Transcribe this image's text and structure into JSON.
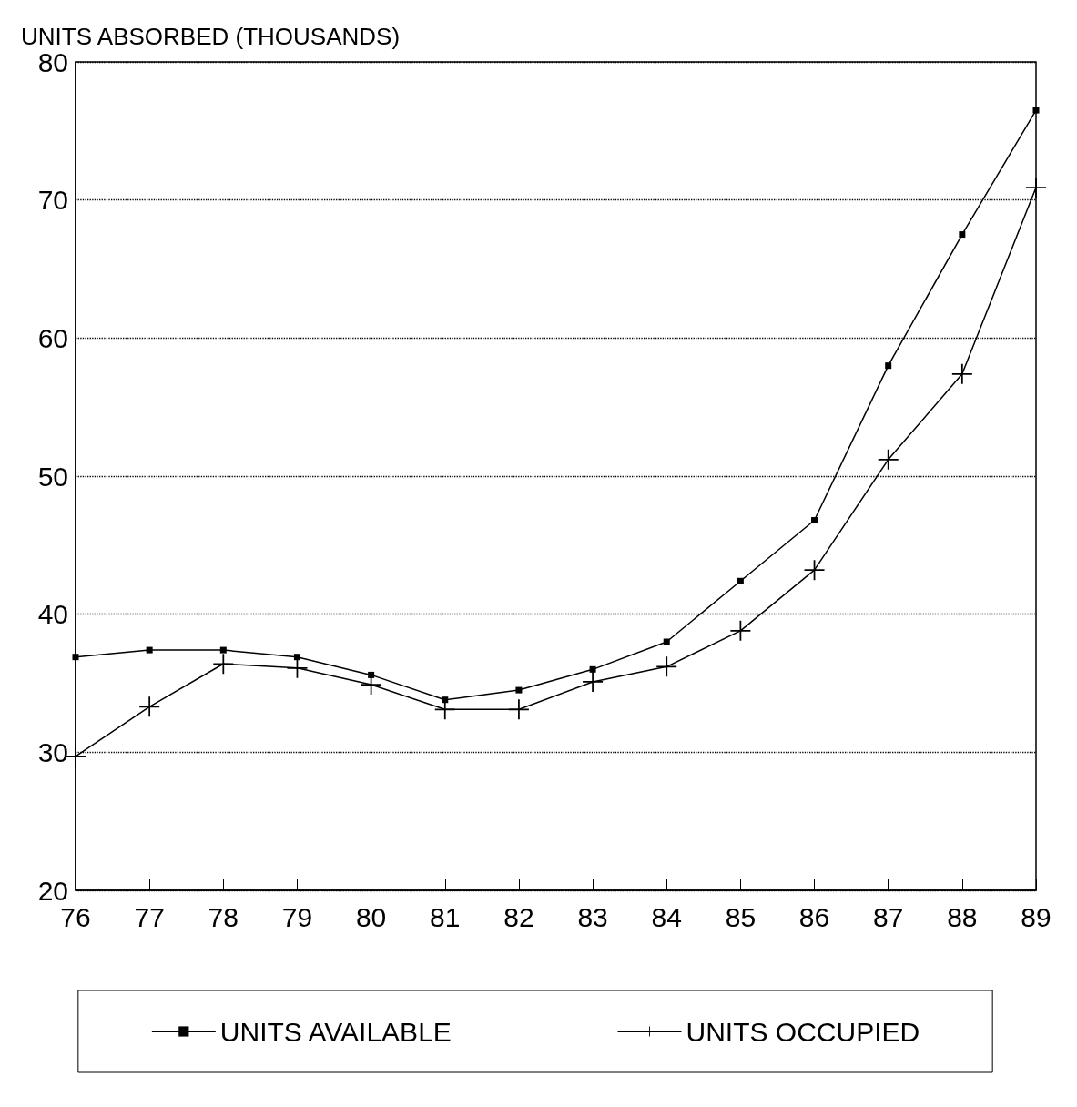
{
  "chart_data": {
    "type": "line",
    "ylabel": "UNITS ABSORBED (THOUSANDS)",
    "categories": [
      "76",
      "77",
      "78",
      "79",
      "80",
      "81",
      "82",
      "83",
      "84",
      "85",
      "86",
      "87",
      "88",
      "89"
    ],
    "series": [
      {
        "name": "UNITS AVAILABLE",
        "color": "#000000",
        "marker": "square",
        "values": [
          36.9,
          37.4,
          37.4,
          36.9,
          35.6,
          33.8,
          34.5,
          36.0,
          38.0,
          42.4,
          46.8,
          58.0,
          67.5,
          76.5
        ]
      },
      {
        "name": "UNITS OCCUPIED",
        "color": "#000000",
        "marker": "cross",
        "values": [
          29.7,
          33.3,
          36.4,
          36.1,
          34.9,
          33.1,
          33.1,
          35.1,
          36.2,
          38.8,
          43.2,
          51.2,
          57.4,
          70.9
        ]
      }
    ],
    "ylim": [
      20,
      80
    ],
    "yticks": [
      20,
      30,
      40,
      50,
      60,
      70,
      80
    ],
    "grid": "y",
    "legend": "bottom",
    "line_style": "solid"
  }
}
